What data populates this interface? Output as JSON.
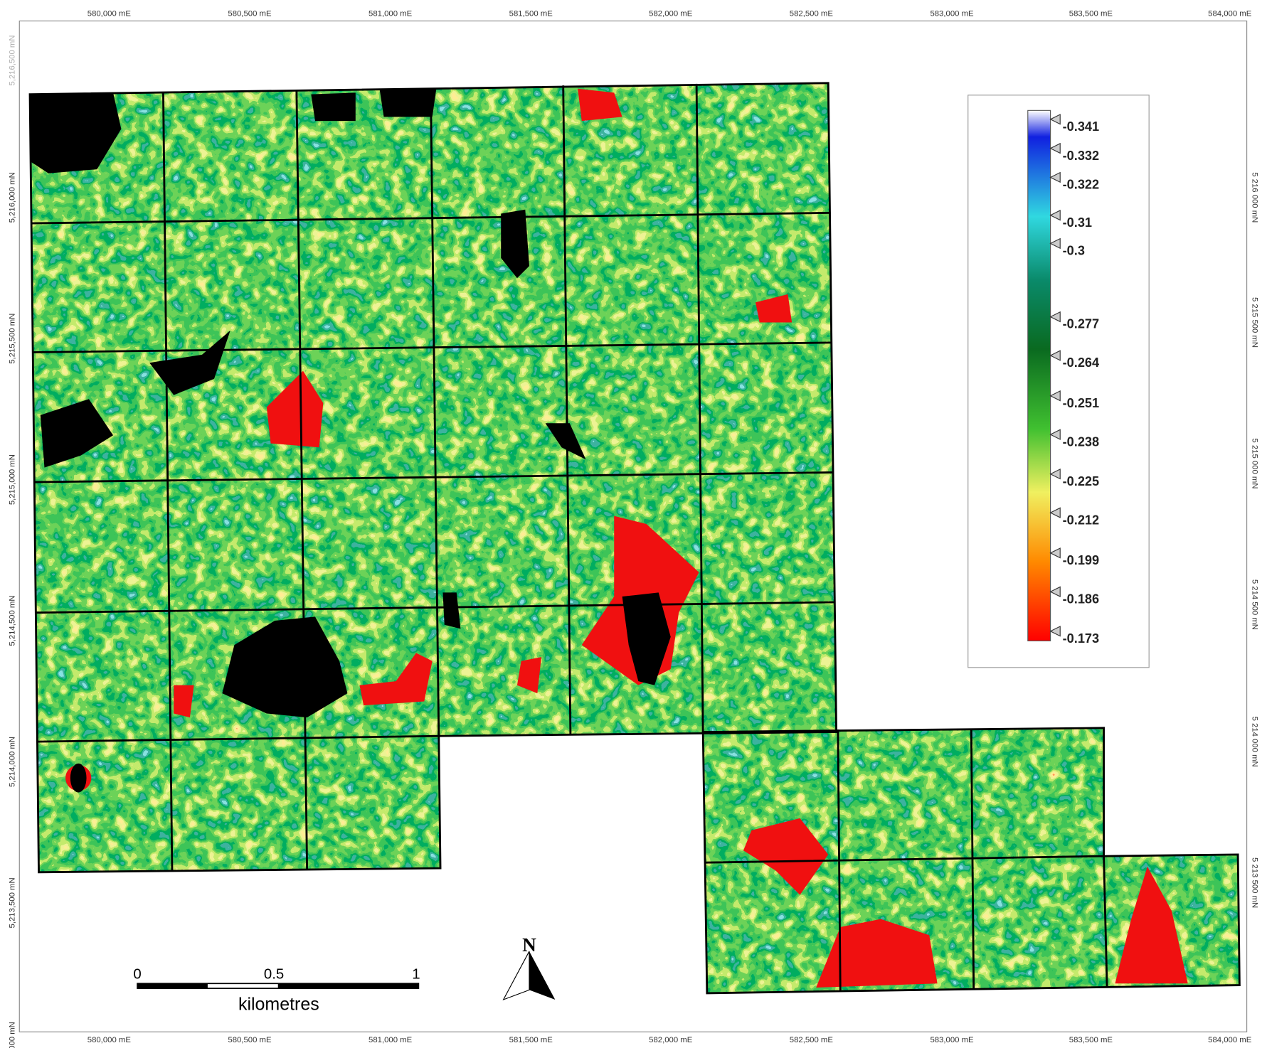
{
  "map": {
    "x_labels": [
      "580,000 mE",
      "580,500 mE",
      "581,000 mE",
      "581,500 mE",
      "582,000 mE",
      "582,500 mE",
      "583,000 mE",
      "583,500 mE",
      "584,000 mE"
    ],
    "y_labels_left": [
      "5,216,500 mN",
      "5,216,000 mN",
      "5,215,500 mN",
      "5,215,000 mN",
      "5,214,500 mN",
      "5,214,000 mN",
      "5,213,500 mN",
      "000 mN"
    ],
    "y_labels_right": [
      "5 216 000 mN",
      "5 215 500 mN",
      "5 215 000 mN",
      "5 214 500 mN",
      "5 214 000 mN",
      "5 213 500 mN"
    ],
    "legend": [
      "-0.341",
      "-0.332",
      "-0.322",
      "-0.31",
      "-0.3",
      "-0.277",
      "-0.264",
      "-0.251",
      "-0.238",
      "-0.225",
      "-0.212",
      "-0.199",
      "-0.186",
      "-0.173"
    ],
    "scale_bar": {
      "ticks": [
        "0",
        "0.5",
        "1"
      ],
      "unit": "kilometres"
    },
    "north": "N"
  }
}
